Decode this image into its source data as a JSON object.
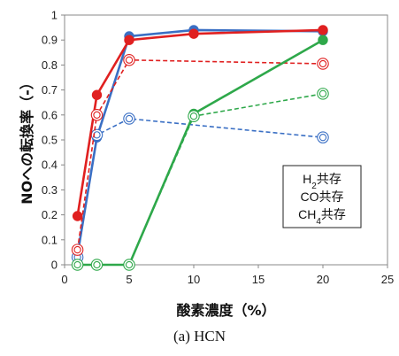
{
  "chart_data": {
    "type": "line",
    "xlabel": "酸素濃度（%）",
    "ylabel": "NOへの転換率（-）",
    "xlim": [
      0,
      25
    ],
    "ylim": [
      0,
      1
    ],
    "xticks": [
      "0",
      "5",
      "10",
      "15",
      "20",
      "25"
    ],
    "yticks": [
      "0",
      "0.1",
      "0.2",
      "0.3",
      "0.4",
      "0.5",
      "0.6",
      "0.7",
      "0.8",
      "0.9",
      "1"
    ],
    "grid": false,
    "legend": {
      "placement": "right",
      "entries": [
        "H2共存",
        "CO共存",
        "CH4共存"
      ],
      "entries_display": [
        {
          "base": "H",
          "sub": "2",
          "rest": "共存"
        },
        {
          "base": "CO",
          "sub": "",
          "rest": "共存"
        },
        {
          "base": "CH",
          "sub": "4",
          "rest": "共存"
        }
      ]
    },
    "series": [
      {
        "color": "#3a6fc4",
        "style": "solid",
        "marker": "filled",
        "x": [
          1,
          2.5,
          5,
          10,
          20
        ],
        "y": [
          0.04,
          0.51,
          0.915,
          0.94,
          0.935
        ]
      },
      {
        "color": "#3a6fc4",
        "style": "dashed",
        "marker": "open-double",
        "x": [
          1,
          2.5,
          5,
          20
        ],
        "y": [
          0.03,
          0.52,
          0.585,
          0.51
        ]
      },
      {
        "color": "#e02020",
        "style": "solid",
        "marker": "filled",
        "x": [
          1,
          2.5,
          5,
          10,
          20
        ],
        "y": [
          0.195,
          0.68,
          0.9,
          0.925,
          0.94
        ]
      },
      {
        "color": "#e02020",
        "style": "dashed",
        "marker": "open-double",
        "x": [
          1,
          2.5,
          5,
          20
        ],
        "y": [
          0.06,
          0.6,
          0.82,
          0.805
        ]
      },
      {
        "color": "#2ea84a",
        "style": "solid",
        "marker": "filled",
        "x": [
          1,
          2.5,
          5,
          10,
          20
        ],
        "y": [
          0.0,
          0.0,
          0.0,
          0.605,
          0.9
        ]
      },
      {
        "color": "#2ea84a",
        "style": "dashed",
        "marker": "open-double",
        "x": [
          1,
          2.5,
          5,
          10,
          20
        ],
        "y": [
          0.0,
          0.0,
          0.0,
          0.595,
          0.685
        ]
      }
    ]
  },
  "caption": "(a) HCN"
}
